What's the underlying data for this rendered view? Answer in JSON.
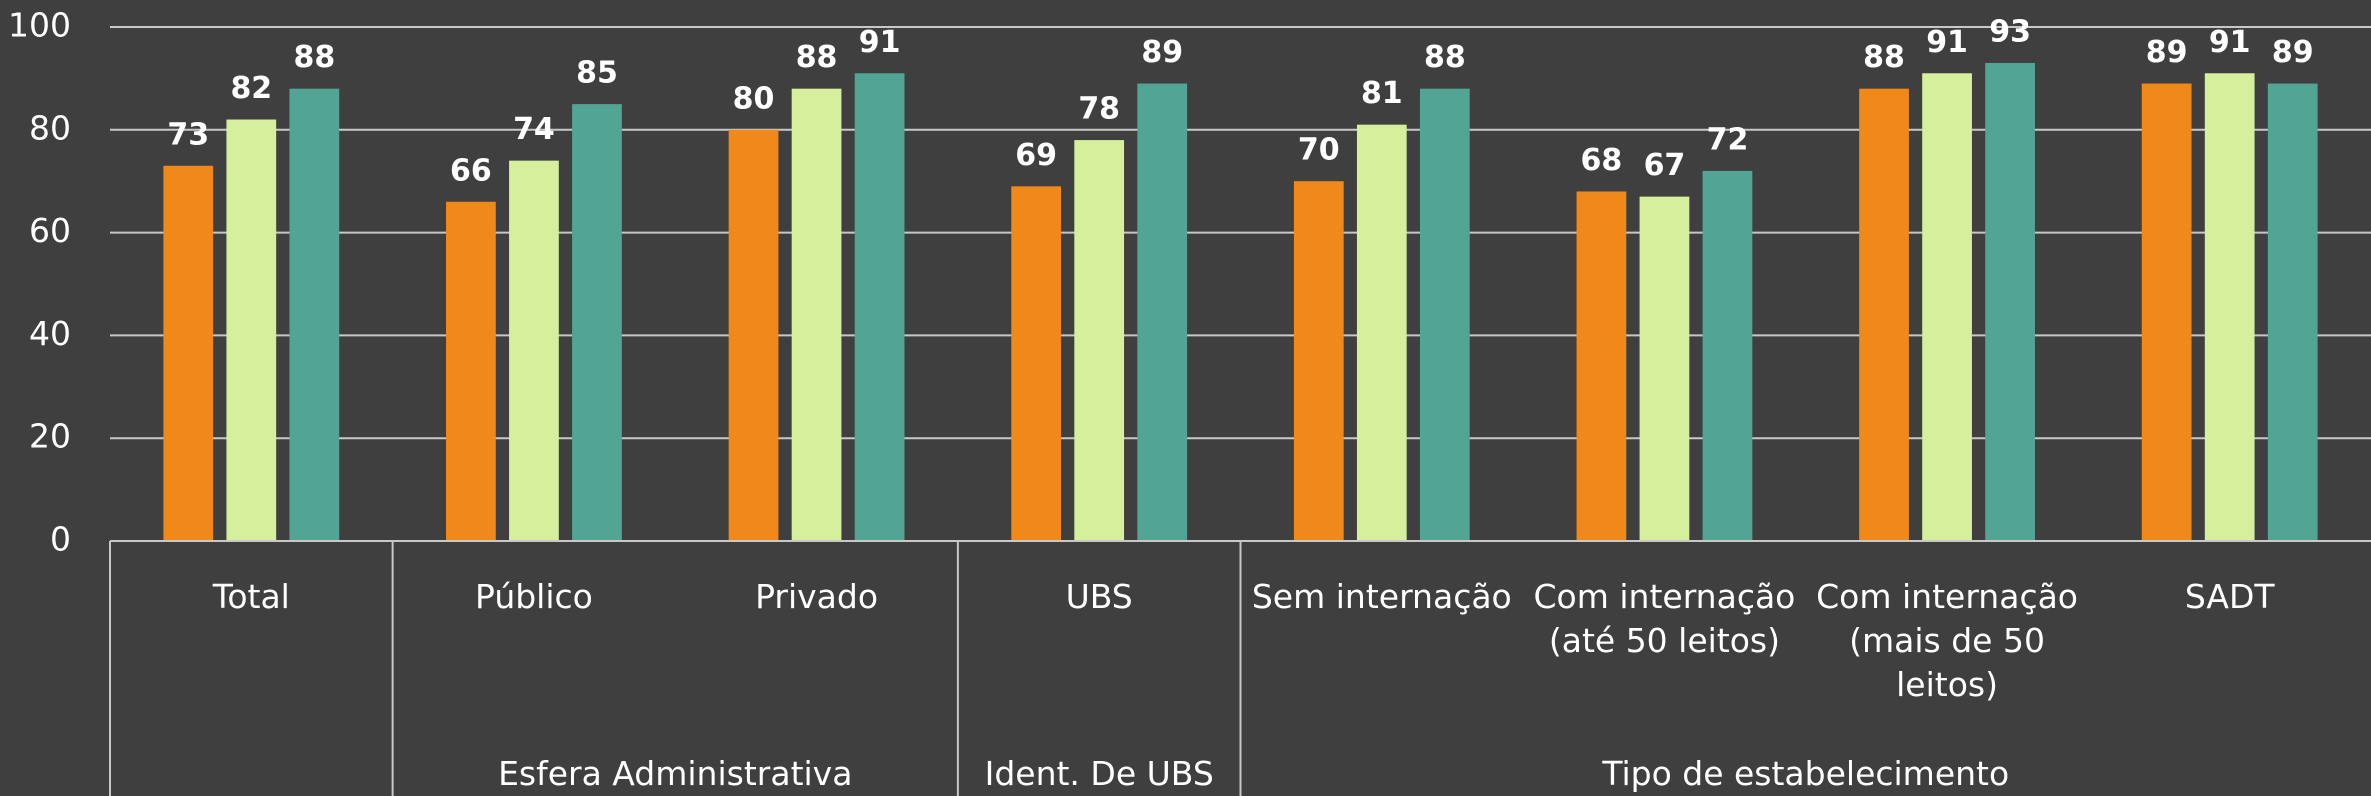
{
  "chart_data": {
    "type": "bar",
    "categories": [
      "Total",
      "Público",
      "Privado",
      "UBS",
      "Sem internação",
      "Com internação (até 50 leitos)",
      "Com internação (mais de 50 leitos)",
      "SADT"
    ],
    "groups": [
      {
        "label": null,
        "size": 1
      },
      {
        "label": "Esfera Administrativa",
        "size": 2
      },
      {
        "label": "Ident. De UBS",
        "size": 1
      },
      {
        "label": "Tipo de estabelecimento",
        "size": 4
      }
    ],
    "series": [
      {
        "color": "#f0891a",
        "values": [
          73,
          66,
          80,
          69,
          70,
          68,
          88,
          89
        ]
      },
      {
        "color": "#d5ef9c",
        "values": [
          82,
          74,
          88,
          78,
          81,
          67,
          91,
          91
        ]
      },
      {
        "color": "#52a594",
        "values": [
          88,
          85,
          91,
          89,
          88,
          72,
          93,
          89
        ]
      }
    ],
    "ylim": [
      0,
      100
    ],
    "yticks": [
      0,
      20,
      40,
      60,
      80,
      100
    ],
    "grid": true
  }
}
